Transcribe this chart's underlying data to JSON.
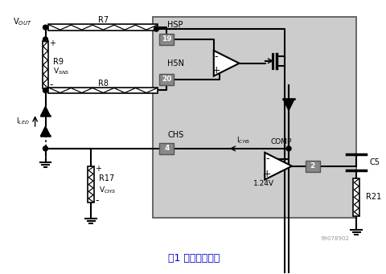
{
  "title": "图1 上管采样电路",
  "background_color": "#ffffff",
  "chip_bg_color": "#cccccc",
  "chip_border_color": "#666666",
  "text_color": "#000000",
  "watermark": "99078902",
  "fig_width": 4.81,
  "fig_height": 3.41,
  "pin_labels": [
    "19",
    "20",
    "4",
    "2"
  ],
  "node_labels": [
    "HSP",
    "H5N",
    "CHS",
    "COMP",
    "1.24V"
  ],
  "component_labels": [
    "R7",
    "R8",
    "R9",
    "R17",
    "C5",
    "R21"
  ],
  "title_color": "#0000cc"
}
